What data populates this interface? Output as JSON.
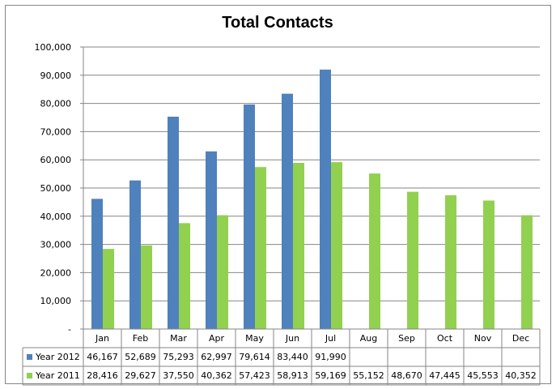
{
  "chart_data": {
    "type": "bar",
    "title": "Total Contacts",
    "xlabel": "",
    "ylabel": "",
    "ylim": [
      0,
      100000
    ],
    "y_ticks": [
      "-",
      "10,000",
      "20,000",
      "30,000",
      "40,000",
      "50,000",
      "60,000",
      "70,000",
      "80,000",
      "90,000",
      "100,000"
    ],
    "grid": true,
    "legend": "data-table",
    "categories": [
      "Jan",
      "Feb",
      "Mar",
      "Apr",
      "May",
      "Jun",
      "Jul",
      "Aug",
      "Sep",
      "Oct",
      "Nov",
      "Dec"
    ],
    "series": [
      {
        "name": "Year 2012",
        "color": "#4f81bd",
        "values": [
          46167,
          52689,
          75293,
          62997,
          79614,
          83440,
          91990,
          null,
          null,
          null,
          null,
          null
        ],
        "labels": [
          "46,167",
          "52,689",
          "75,293",
          "62,997",
          "79,614",
          "83,440",
          "91,990",
          "",
          "",
          "",
          "",
          ""
        ]
      },
      {
        "name": "Year 2011",
        "color": "#92d050",
        "values": [
          28416,
          29627,
          37550,
          40362,
          57423,
          58913,
          59169,
          55152,
          48670,
          47445,
          45553,
          40352
        ],
        "labels": [
          "28,416",
          "29,627",
          "37,550",
          "40,362",
          "57,423",
          "58,913",
          "59,169",
          "55,152",
          "48,670",
          "47,445",
          "45,553",
          "40,352"
        ]
      }
    ]
  }
}
